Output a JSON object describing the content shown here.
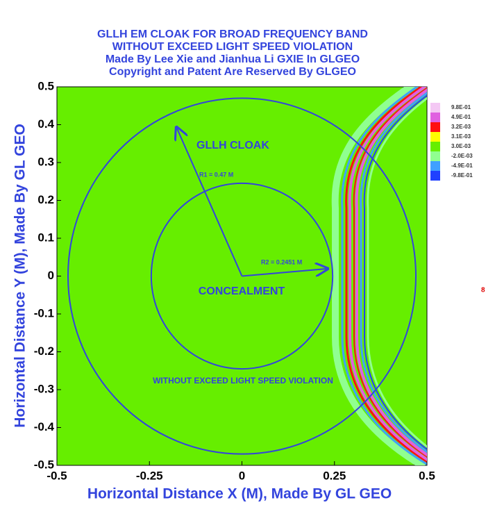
{
  "chart_data": {
    "type": "contour",
    "title_lines": [
      "GLLH EM CLOAK FOR BROAD FREQUENCY BAND",
      "WITHOUT EXCEED LIGHT SPEED VIOLATION",
      "Made By Lee Xie and Jianhua Li GXIE In GLGEO",
      "Copyright and Patent Are Reserved By GLGEO"
    ],
    "x_label": "Horizontal Distance X (M), Made By GL GEO",
    "y_label": "Horizontal Distance Y (M), Made By GL GEO",
    "xlim": [
      -0.5,
      0.5
    ],
    "ylim": [
      -0.5,
      0.5
    ],
    "xticks": [
      -0.5,
      -0.25,
      0,
      0.25,
      0.5
    ],
    "yticks": [
      -0.5,
      -0.4,
      -0.3,
      -0.2,
      -0.1,
      0,
      0.1,
      0.2,
      0.3,
      0.4,
      0.5
    ],
    "legend": {
      "levels": [
        {
          "value": 0.98,
          "label": "9.8E-01"
        },
        {
          "value": 0.49,
          "label": "4.9E-01"
        },
        {
          "value": 0.0032,
          "label": "3.2E-03"
        },
        {
          "value": 0.0031,
          "label": "3.1E-03"
        },
        {
          "value": 0.003,
          "label": "3.0E-03"
        },
        {
          "value": -0.002,
          "label": "-2.0E-03"
        },
        {
          "value": -0.49,
          "label": "-4.9E-01"
        },
        {
          "value": -0.98,
          "label": "-9.8E-01"
        }
      ],
      "colors": [
        "#f4c8f4",
        "#e060e0",
        "#ff1010",
        "#ffff00",
        "#66ee00",
        "#90ff90",
        "#40a0ff",
        "#2040ff"
      ]
    },
    "circles": {
      "values": [
        0.47,
        0.2451
      ],
      "value_labels": [
        "R1 = 0.47 M",
        "R2 = 0.2451 M"
      ]
    },
    "annotations": [
      "GLLH CLOAK",
      "CONCEALMENT",
      "WITHOUT EXCEED LIGHT SPEED VIOLATION",
      "8"
    ],
    "background": "#66ee00",
    "line_color": "#3344dd"
  }
}
